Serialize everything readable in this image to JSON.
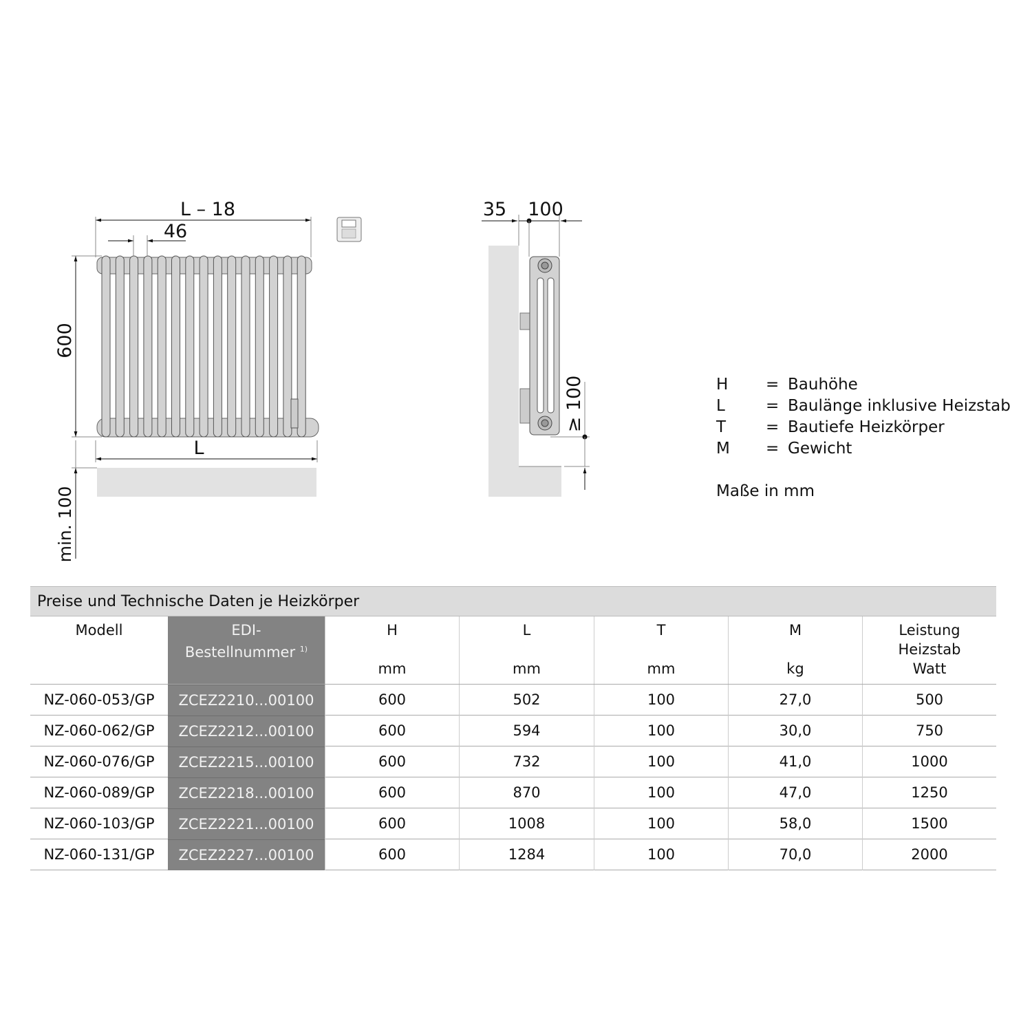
{
  "front_view": {
    "dim_total_minus": "L – 18",
    "dim_section": "46",
    "dim_height": "600",
    "dim_length": "L",
    "dim_floor": "min. 100",
    "control_icon": "thermostat-control-icon"
  },
  "side_view": {
    "dim_wall": "35",
    "dim_depth": "100",
    "dim_floor": "≥ 100"
  },
  "legend": {
    "items": [
      {
        "key": "H",
        "eq": "=",
        "text": "Bauhöhe"
      },
      {
        "key": "L",
        "eq": "=",
        "text": "Baulänge inklusive Heizstab"
      },
      {
        "key": "T",
        "eq": "=",
        "text": "Bautiefe Heizkörper"
      },
      {
        "key": "M",
        "eq": "=",
        "text": "Gewicht"
      }
    ],
    "note": "Maße in mm"
  },
  "table": {
    "title": "Preise und Technische Daten je Heizkörper",
    "headers": [
      {
        "label": "Modell",
        "unit": ""
      },
      {
        "label": "EDI-",
        "label2": "Bestellnummer",
        "sup": "1)",
        "unit": ""
      },
      {
        "label": "H",
        "unit": "mm"
      },
      {
        "label": "L",
        "unit": "mm"
      },
      {
        "label": "T",
        "unit": "mm"
      },
      {
        "label": "M",
        "unit": "kg"
      },
      {
        "label": "Leistung",
        "label2": "Heizstab",
        "unit": "Watt"
      }
    ],
    "rows": [
      [
        "NZ-060-053/GP",
        "ZCEZ2210...00100",
        "600",
        "502",
        "100",
        "27,0",
        "500"
      ],
      [
        "NZ-060-062/GP",
        "ZCEZ2212...00100",
        "600",
        "594",
        "100",
        "30,0",
        "750"
      ],
      [
        "NZ-060-076/GP",
        "ZCEZ2215...00100",
        "600",
        "732",
        "100",
        "41,0",
        "1000"
      ],
      [
        "NZ-060-089/GP",
        "ZCEZ2218...00100",
        "600",
        "870",
        "100",
        "47,0",
        "1250"
      ],
      [
        "NZ-060-103/GP",
        "ZCEZ2221...00100",
        "600",
        "1008",
        "100",
        "58,0",
        "1500"
      ],
      [
        "NZ-060-131/GP",
        "ZCEZ2227...00100",
        "600",
        "1284",
        "100",
        "70,0",
        "2000"
      ]
    ]
  }
}
